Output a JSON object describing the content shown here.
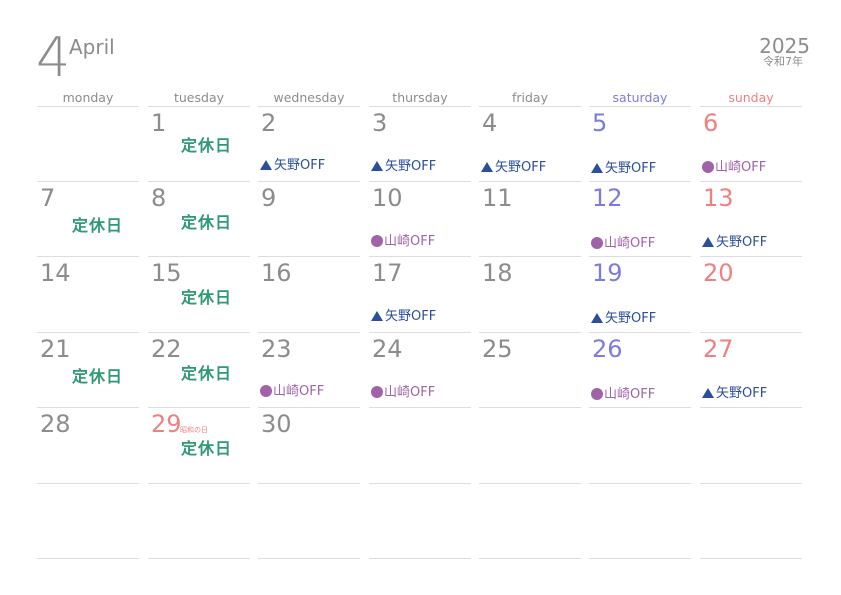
{
  "header": {
    "month_number": "4",
    "month_name": "April",
    "year": "2025",
    "era": "令和7年"
  },
  "weekdays": [
    "monday",
    "tuesday",
    "wednesday",
    "thursday",
    "friday",
    "saturday",
    "sunday"
  ],
  "days": [
    {
      "n": "1",
      "col": 1,
      "row": 0,
      "closed": "定休日"
    },
    {
      "n": "2",
      "col": 2,
      "row": 0,
      "note": "矢野OFF",
      "who": "yano"
    },
    {
      "n": "3",
      "col": 3,
      "row": 0,
      "note": "矢野OFF",
      "who": "yano"
    },
    {
      "n": "4",
      "col": 4,
      "row": 0,
      "note": "矢野OFF",
      "who": "yano"
    },
    {
      "n": "5",
      "col": 5,
      "row": 0,
      "note": "矢野OFF",
      "who": "yano"
    },
    {
      "n": "6",
      "col": 6,
      "row": 0,
      "note": "山崎OFF",
      "who": "yamazaki"
    },
    {
      "n": "7",
      "col": 0,
      "row": 1,
      "closed": "定休日"
    },
    {
      "n": "8",
      "col": 1,
      "row": 1,
      "closed": "定休日"
    },
    {
      "n": "9",
      "col": 2,
      "row": 1
    },
    {
      "n": "10",
      "col": 3,
      "row": 1,
      "note": "山崎OFF",
      "who": "yamazaki"
    },
    {
      "n": "11",
      "col": 4,
      "row": 1
    },
    {
      "n": "12",
      "col": 5,
      "row": 1,
      "note": "山崎OFF",
      "who": "yamazaki"
    },
    {
      "n": "13",
      "col": 6,
      "row": 1,
      "note": "矢野OFF",
      "who": "yano"
    },
    {
      "n": "14",
      "col": 0,
      "row": 2
    },
    {
      "n": "15",
      "col": 1,
      "row": 2,
      "closed": "定休日"
    },
    {
      "n": "16",
      "col": 2,
      "row": 2
    },
    {
      "n": "17",
      "col": 3,
      "row": 2,
      "note": "矢野OFF",
      "who": "yano"
    },
    {
      "n": "18",
      "col": 4,
      "row": 2
    },
    {
      "n": "19",
      "col": 5,
      "row": 2,
      "note": "矢野OFF",
      "who": "yano"
    },
    {
      "n": "20",
      "col": 6,
      "row": 2
    },
    {
      "n": "21",
      "col": 0,
      "row": 3,
      "closed": "定休日"
    },
    {
      "n": "22",
      "col": 1,
      "row": 3,
      "closed": "定休日"
    },
    {
      "n": "23",
      "col": 2,
      "row": 3,
      "note": "山崎OFF",
      "who": "yamazaki"
    },
    {
      "n": "24",
      "col": 3,
      "row": 3,
      "note": "山崎OFF",
      "who": "yamazaki"
    },
    {
      "n": "25",
      "col": 4,
      "row": 3
    },
    {
      "n": "26",
      "col": 5,
      "row": 3,
      "note": "山崎OFF",
      "who": "yamazaki"
    },
    {
      "n": "27",
      "col": 6,
      "row": 3,
      "note": "矢野OFF",
      "who": "yano"
    },
    {
      "n": "28",
      "col": 0,
      "row": 4
    },
    {
      "n": "29",
      "col": 1,
      "row": 4,
      "closed": "定休日",
      "holiday": "昭和の日"
    },
    {
      "n": "30",
      "col": 2,
      "row": 4
    }
  ]
}
